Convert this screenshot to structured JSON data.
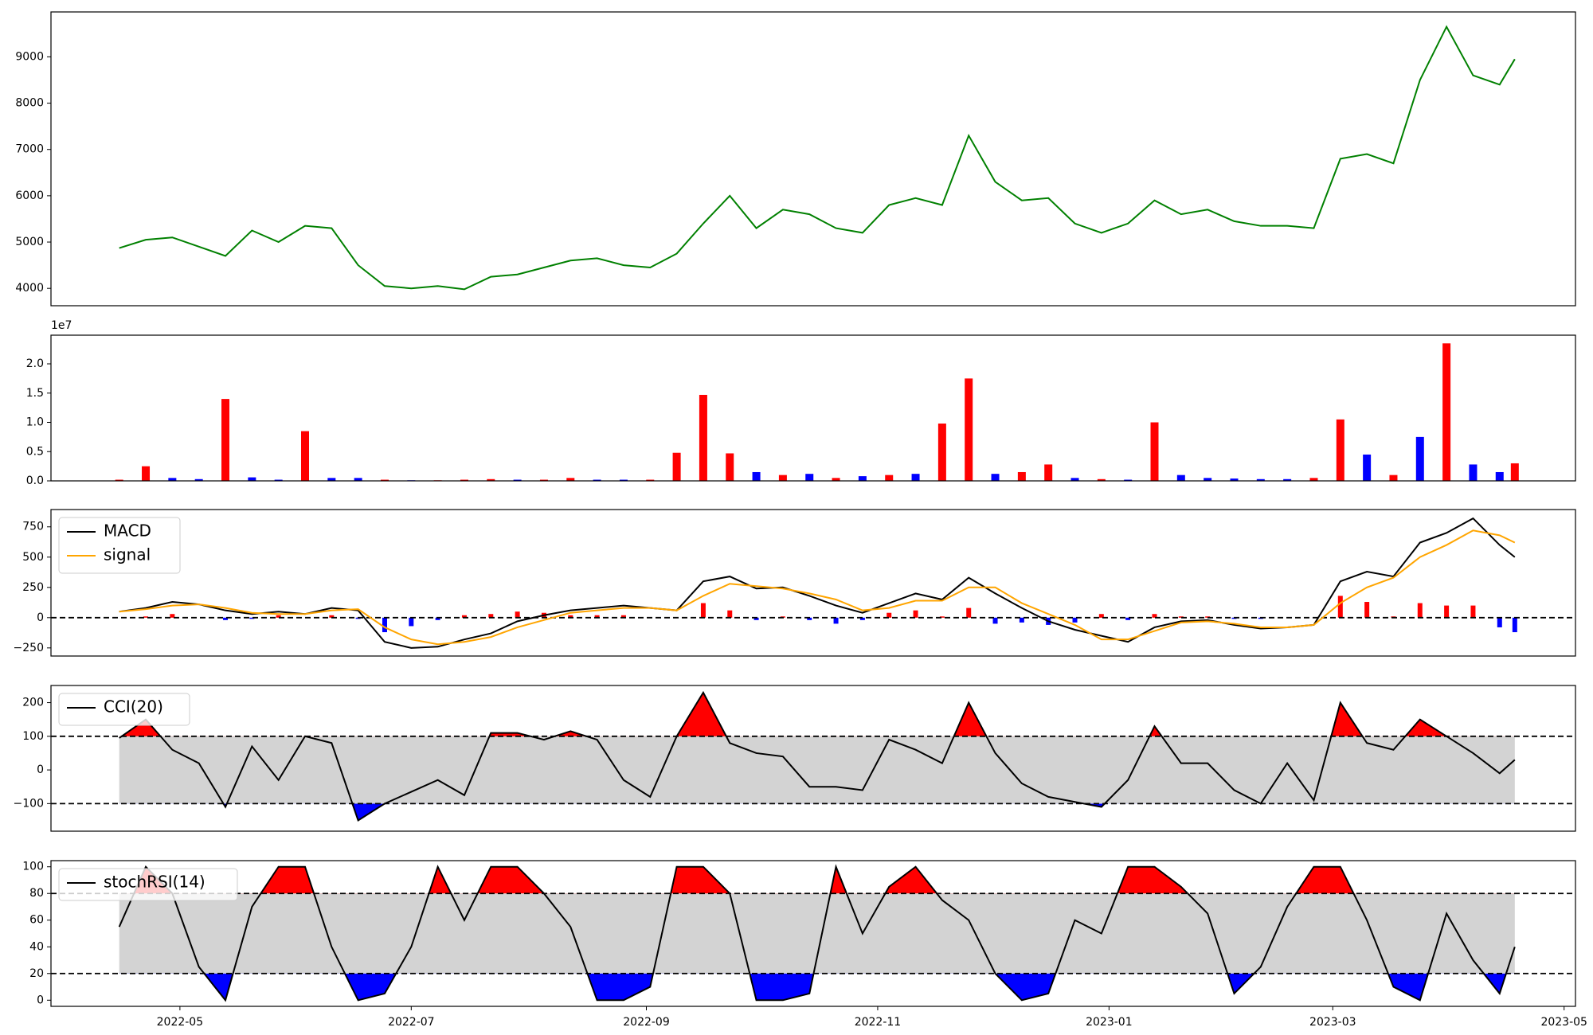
{
  "chart_data": [
    {
      "type": "line",
      "series": [
        {
          "name": "price",
          "color": "#008000",
          "values": [
            4870,
            5050,
            5100,
            4900,
            4700,
            5250,
            5000,
            5350,
            5300,
            4500,
            4050,
            4000,
            4050,
            3980,
            4250,
            4300,
            4450,
            4600,
            4650,
            4500,
            4450,
            4750,
            5400,
            6000,
            5300,
            5700,
            5600,
            5300,
            5200,
            5800,
            5950,
            5800,
            7300,
            6300,
            5900,
            5950,
            5400,
            5200,
            5400,
            5900,
            5600,
            5700,
            5450,
            5350,
            5350,
            5300,
            6800,
            6900,
            6700,
            8500,
            9650,
            8600,
            8400,
            8950
          ]
        }
      ],
      "ylim": [
        3625,
        9970
      ],
      "yticks": [
        4000,
        5000,
        6000,
        7000,
        8000,
        9000
      ]
    },
    {
      "type": "bar",
      "offset_label": "1e7",
      "values": [
        0.02,
        0.25,
        0.05,
        0.03,
        1.4,
        0.06,
        0.02,
        0.85,
        0.05,
        0.05,
        0.02,
        0.01,
        0.01,
        0.02,
        0.03,
        0.02,
        0.02,
        0.05,
        0.02,
        0.02,
        0.02,
        0.48,
        1.47,
        0.47,
        0.15,
        0.1,
        0.12,
        0.05,
        0.08,
        0.1,
        0.12,
        0.98,
        1.75,
        0.12,
        0.15,
        0.28,
        0.05,
        0.03,
        0.02,
        1.0,
        0.1,
        0.05,
        0.04,
        0.03,
        0.03,
        0.05,
        1.05,
        0.45,
        0.1,
        0.75,
        2.35,
        0.28,
        0.15,
        0.3
      ],
      "colors": [
        "#ff0000",
        "#ff0000",
        "#0000ff",
        "#0000ff",
        "#ff0000",
        "#0000ff",
        "#0000ff",
        "#ff0000",
        "#0000ff",
        "#0000ff",
        "#ff0000",
        "#0000ff",
        "#ff0000",
        "#ff0000",
        "#ff0000",
        "#0000ff",
        "#ff0000",
        "#ff0000",
        "#0000ff",
        "#0000ff",
        "#ff0000",
        "#ff0000",
        "#ff0000",
        "#ff0000",
        "#0000ff",
        "#ff0000",
        "#0000ff",
        "#ff0000",
        "#0000ff",
        "#ff0000",
        "#0000ff",
        "#ff0000",
        "#ff0000",
        "#0000ff",
        "#ff0000",
        "#ff0000",
        "#0000ff",
        "#ff0000",
        "#0000ff",
        "#ff0000",
        "#0000ff",
        "#0000ff",
        "#0000ff",
        "#0000ff",
        "#0000ff",
        "#ff0000",
        "#ff0000",
        "#0000ff",
        "#ff0000",
        "#0000ff",
        "#ff0000",
        "#0000ff",
        "#0000ff",
        "#ff0000"
      ],
      "ylim": [
        0,
        2.49
      ],
      "yticks": [
        {
          "value": 0,
          "label": "0.0"
        },
        {
          "value": 0.5,
          "label": "0.5"
        },
        {
          "value": 1,
          "label": "1.0"
        },
        {
          "value": 1.5,
          "label": "1.5"
        },
        {
          "value": 2,
          "label": "2.0"
        }
      ]
    },
    {
      "type": "macd",
      "legend": "upper left",
      "hline": 0,
      "series": [
        {
          "name": "MACD",
          "color": "#000000",
          "values": [
            50,
            80,
            130,
            110,
            60,
            30,
            50,
            30,
            80,
            60,
            -200,
            -250,
            -240,
            -180,
            -130,
            -30,
            20,
            60,
            80,
            100,
            80,
            60,
            300,
            340,
            240,
            250,
            180,
            100,
            40,
            120,
            200,
            150,
            330,
            200,
            80,
            -30,
            -100,
            -150,
            -200,
            -80,
            -30,
            -20,
            -60,
            -90,
            -80,
            -60,
            300,
            380,
            340,
            620,
            700,
            820,
            600,
            500
          ]
        },
        {
          "name": "signal",
          "color": "#ffa500",
          "values": [
            50,
            70,
            100,
            110,
            80,
            40,
            30,
            30,
            60,
            70,
            -80,
            -180,
            -220,
            -200,
            -160,
            -80,
            -20,
            40,
            60,
            80,
            80,
            60,
            180,
            280,
            260,
            240,
            200,
            150,
            60,
            80,
            140,
            140,
            250,
            250,
            120,
            30,
            -60,
            -180,
            -180,
            -110,
            -40,
            -30,
            -50,
            -80,
            -80,
            -60,
            120,
            250,
            330,
            500,
            600,
            720,
            680,
            620
          ]
        }
      ],
      "histogram": {
        "values": [
          0,
          10,
          30,
          0,
          -20,
          -10,
          20,
          0,
          20,
          -10,
          -120,
          -70,
          -20,
          20,
          30,
          50,
          40,
          20,
          20,
          20,
          0,
          0,
          120,
          60,
          -20,
          10,
          -20,
          -50,
          -20,
          40,
          60,
          10,
          80,
          -50,
          -40,
          -60,
          -40,
          30,
          -20,
          30,
          10,
          10,
          -10,
          -10,
          0,
          0,
          180,
          130,
          10,
          120,
          100,
          100,
          -80,
          -120
        ],
        "colors": [
          "#ff0000",
          "#0000ff"
        ]
      },
      "ylim": [
        -317,
        893
      ],
      "yticks": [
        {
          "value": -250,
          "label": "−250"
        },
        0,
        250,
        500,
        750
      ]
    },
    {
      "type": "oscillator",
      "legend": "upper left",
      "thresholds": [
        -100,
        100
      ],
      "band_color": "#d3d3d3",
      "above_color": "#ff0000",
      "below_color": "#0000ff",
      "series": [
        {
          "name": "CCI(20)",
          "color": "#000000",
          "values": [
            95,
            150,
            60,
            20,
            -110,
            70,
            -30,
            100,
            80,
            -150,
            -100,
            -65,
            -30,
            -75,
            110,
            110,
            90,
            115,
            90,
            -30,
            -80,
            100,
            230,
            80,
            50,
            40,
            -50,
            -50,
            -60,
            90,
            60,
            20,
            200,
            50,
            -40,
            -80,
            -95,
            -110,
            -30,
            130,
            20,
            20,
            -60,
            -100,
            20,
            -90,
            200,
            80,
            60,
            150,
            100,
            50,
            -10,
            30
          ]
        }
      ],
      "ylim": [
        -182,
        251
      ],
      "yticks": [
        {
          "value": -100,
          "label": "−100"
        },
        0,
        100,
        200
      ]
    },
    {
      "type": "oscillator",
      "legend": "upper left",
      "thresholds": [
        20,
        80
      ],
      "band_color": "#d3d3d3",
      "above_color": "#ff0000",
      "below_color": "#0000ff",
      "series": [
        {
          "name": "stochRSI(14)",
          "color": "#000000",
          "values": [
            55,
            100,
            80,
            25,
            0,
            70,
            100,
            100,
            40,
            0,
            5,
            40,
            100,
            60,
            100,
            100,
            80,
            55,
            0,
            0,
            10,
            100,
            100,
            80,
            0,
            0,
            5,
            100,
            50,
            85,
            100,
            75,
            60,
            20,
            0,
            5,
            60,
            50,
            100,
            100,
            85,
            65,
            5,
            25,
            70,
            100,
            100,
            60,
            10,
            0,
            65,
            30,
            5,
            40
          ]
        }
      ],
      "ylim": [
        -4.6,
        104.6
      ],
      "yticks": [
        0,
        20,
        40,
        60,
        80,
        100
      ],
      "x": [
        "2022-04-15",
        "2022-04-22",
        "2022-04-29",
        "2022-05-06",
        "2022-05-13",
        "2022-05-20",
        "2022-05-27",
        "2022-06-03",
        "2022-06-10",
        "2022-06-17",
        "2022-06-24",
        "2022-07-01",
        "2022-07-08",
        "2022-07-15",
        "2022-07-22",
        "2022-07-29",
        "2022-08-05",
        "2022-08-12",
        "2022-08-19",
        "2022-08-26",
        "2022-09-02",
        "2022-09-09",
        "2022-09-16",
        "2022-09-23",
        "2022-09-30",
        "2022-10-07",
        "2022-10-14",
        "2022-10-21",
        "2022-10-28",
        "2022-11-04",
        "2022-11-11",
        "2022-11-18",
        "2022-11-25",
        "2022-12-02",
        "2022-12-09",
        "2022-12-16",
        "2022-12-23",
        "2022-12-30",
        "2023-01-06",
        "2023-01-13",
        "2023-01-20",
        "2023-01-27",
        "2023-02-03",
        "2023-02-10",
        "2023-02-17",
        "2023-02-24",
        "2023-03-03",
        "2023-03-10",
        "2023-03-17",
        "2023-03-24",
        "2023-03-31",
        "2023-04-07",
        "2023-04-14",
        "2023-04-18"
      ],
      "xlim": [
        "2022-03-28",
        "2023-05-04"
      ],
      "xticks": [
        {
          "value": "2022-05-01",
          "label": "2022-05"
        },
        {
          "value": "2022-07-01",
          "label": "2022-07"
        },
        {
          "value": "2022-09-01",
          "label": "2022-09"
        },
        {
          "value": "2022-11-01",
          "label": "2022-11"
        },
        {
          "value": "2023-01-01",
          "label": "2023-01"
        },
        {
          "value": "2023-03-01",
          "label": "2023-03"
        },
        {
          "value": "2023-05-01",
          "label": "2023-05"
        }
      ]
    }
  ]
}
